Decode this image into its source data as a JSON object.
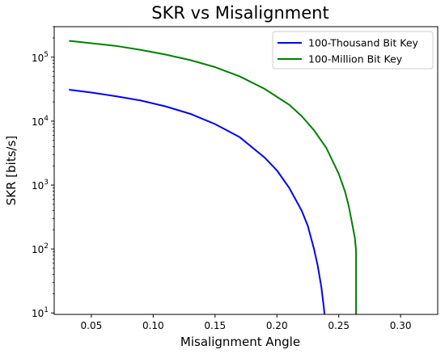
{
  "chart_data": {
    "type": "line",
    "title": "SKR vs Misalignment",
    "xlabel": "Misalignment Angle",
    "ylabel": "SKR [bits/s]",
    "xlim": [
      0.02,
      0.33
    ],
    "ylim": [
      9.5,
      300000
    ],
    "yscale": "log",
    "grid": false,
    "legend": "top-right",
    "x_ticks": [
      0.05,
      0.1,
      0.15,
      0.2,
      0.25,
      0.3
    ],
    "x_tick_labels": [
      "0.05",
      "0.10",
      "0.15",
      "0.20",
      "0.25",
      "0.30"
    ],
    "y_ticks": [
      10,
      100,
      1000,
      10000,
      100000
    ],
    "y_tick_labels": [
      {
        "base": "10",
        "exp": "1"
      },
      {
        "base": "10",
        "exp": "2"
      },
      {
        "base": "10",
        "exp": "3"
      },
      {
        "base": "10",
        "exp": "4"
      },
      {
        "base": "10",
        "exp": "5"
      }
    ],
    "series": [
      {
        "name": "100-Thousand Bit Key",
        "color": "#0000ff",
        "x": [
          0.032,
          0.05,
          0.07,
          0.09,
          0.11,
          0.13,
          0.15,
          0.17,
          0.19,
          0.2,
          0.21,
          0.22,
          0.225,
          0.23,
          0.233,
          0.236,
          0.238,
          0.2385
        ],
        "y": [
          31000,
          28000,
          24500,
          21000,
          17000,
          13000,
          9000,
          5600,
          2700,
          1700,
          900,
          400,
          230,
          100,
          55,
          25,
          12,
          9.5
        ]
      },
      {
        "name": "100-Million Bit Key",
        "color": "#008000",
        "x": [
          0.032,
          0.05,
          0.07,
          0.09,
          0.11,
          0.13,
          0.15,
          0.17,
          0.19,
          0.21,
          0.22,
          0.23,
          0.24,
          0.25,
          0.255,
          0.258,
          0.261,
          0.263,
          0.264,
          0.264
        ],
        "y": [
          180000,
          165000,
          150000,
          130000,
          110000,
          90000,
          70000,
          50000,
          32000,
          18000,
          12000,
          7200,
          3800,
          1500,
          800,
          480,
          240,
          150,
          95,
          9.5
        ]
      }
    ]
  }
}
